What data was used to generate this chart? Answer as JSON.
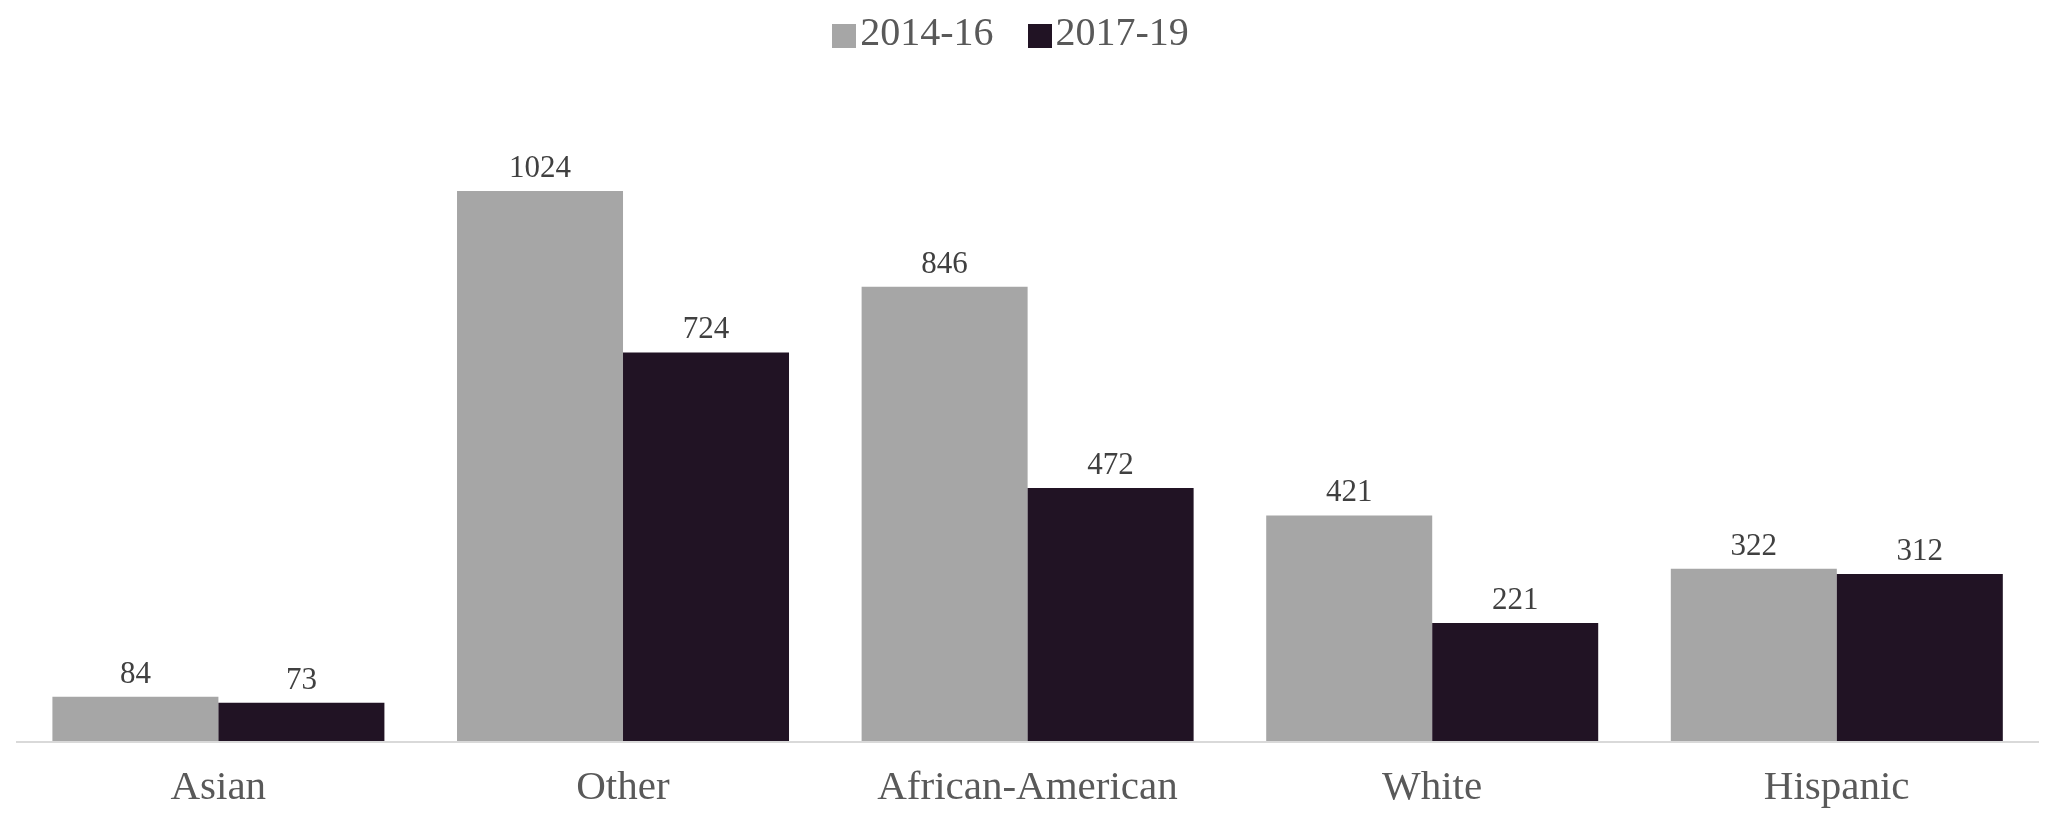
{
  "chart_data": {
    "type": "bar",
    "categories": [
      "Asian",
      "Other",
      "African-American",
      "White",
      "Hispanic"
    ],
    "series": [
      {
        "name": "2014-16",
        "color": "#a6a6a6",
        "values": [
          84,
          1024,
          846,
          421,
          322
        ]
      },
      {
        "name": "2017-19",
        "color": "#211324",
        "values": [
          73,
          724,
          472,
          221,
          312
        ]
      }
    ],
    "data_labels": true,
    "legend": "top",
    "grid": false
  }
}
